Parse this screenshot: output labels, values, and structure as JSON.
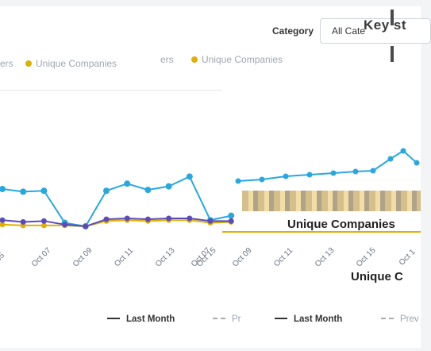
{
  "header": {
    "title_fragment": "",
    "category_label": "Category",
    "category_value": "All Cate",
    "overlay_text": "Key st"
  },
  "legend_top": [
    {
      "label": "ers",
      "kind": "fragment"
    },
    {
      "label": "Unique Companies",
      "color": "#e0b000"
    },
    {
      "label": "ers",
      "kind": "fragment"
    },
    {
      "label": "Unique Companies",
      "color": "#e0b000"
    }
  ],
  "chart_data": {
    "type": "line",
    "x_tick_labels_left": [
      "05",
      "Oct 07",
      "Oct 09",
      "Oct 11",
      "Oct 13",
      "Oct 15"
    ],
    "x_tick_labels_right": [
      "Oct 07",
      "Oct 09",
      "Oct 11",
      "Oct 13",
      "Oct 15",
      "Oct 1"
    ],
    "series": [
      {
        "color": "#29a8e0",
        "values": [
          5,
          4.7,
          4.8,
          1.2,
          0.8,
          4.8,
          5.6,
          4.9,
          5.3,
          6.4,
          1.5,
          2.0
        ]
      },
      {
        "color": "#e0b000",
        "values": [
          1.0,
          0.9,
          0.9,
          0.9,
          0.8,
          1.4,
          1.5,
          1.4,
          1.5,
          1.5,
          1.2,
          1.3
        ]
      },
      {
        "color": "#5b4bb7",
        "values": [
          1.5,
          1.3,
          1.4,
          1.0,
          0.8,
          1.6,
          1.7,
          1.6,
          1.7,
          1.7,
          1.4,
          1.4
        ]
      }
    ]
  },
  "legend_bottom": [
    {
      "label": "Last Month",
      "style": "solid"
    },
    {
      "label": "Pr",
      "style": "dashed"
    },
    {
      "label": "Last Month",
      "style": "solid"
    },
    {
      "label": "Prev",
      "style": "dashed"
    }
  ],
  "overlays": {
    "unique_companies": "Unique Companies",
    "unique_fragment": "Unique C"
  },
  "colors": {
    "blue": "#29a8e0",
    "gold": "#e0b000",
    "purple": "#5b4bb7"
  }
}
